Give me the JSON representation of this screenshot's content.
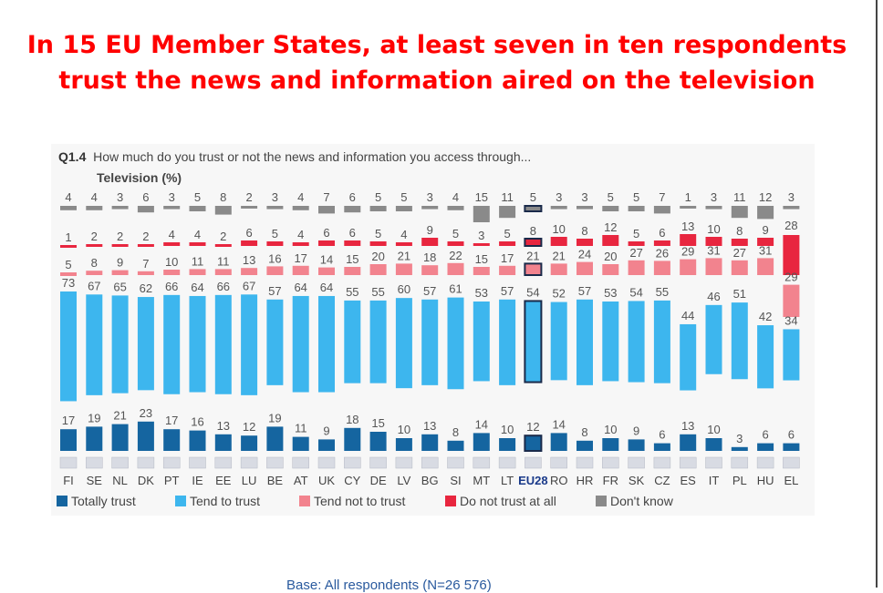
{
  "headline": "In 15 EU Member States, at least seven in ten respondents trust the news and information aired on the television",
  "question": {
    "code": "Q1.4",
    "text": "How much do you trust or not the news and information you access through..."
  },
  "chart_data": {
    "type": "bar",
    "subtitle": "Television (%)",
    "stacked": true,
    "unit": "%",
    "highlight_category": "EU28",
    "categories": [
      "FI",
      "SE",
      "NL",
      "DK",
      "PT",
      "IE",
      "EE",
      "LU",
      "BE",
      "AT",
      "UK",
      "CY",
      "DE",
      "LV",
      "BG",
      "SI",
      "MT",
      "LT",
      "EU28",
      "RO",
      "HR",
      "FR",
      "SK",
      "CZ",
      "ES",
      "IT",
      "PL",
      "HU",
      "EL"
    ],
    "series": [
      {
        "name": "Totally trust",
        "color": "#1565a0",
        "values": [
          17,
          19,
          21,
          23,
          17,
          16,
          13,
          12,
          19,
          11,
          9,
          18,
          15,
          10,
          13,
          8,
          14,
          10,
          12,
          14,
          8,
          10,
          9,
          6,
          13,
          10,
          3,
          6,
          6
        ]
      },
      {
        "name": "Tend to trust",
        "color": "#3db6ee",
        "values": [
          73,
          67,
          65,
          62,
          66,
          64,
          66,
          67,
          57,
          64,
          64,
          55,
          55,
          60,
          57,
          61,
          53,
          57,
          54,
          52,
          57,
          53,
          54,
          55,
          44,
          46,
          51,
          42,
          34
        ]
      },
      {
        "name": "Tend not to trust",
        "color": "#f2838e",
        "values": [
          5,
          8,
          9,
          7,
          10,
          11,
          11,
          13,
          16,
          17,
          14,
          15,
          20,
          21,
          18,
          22,
          15,
          17,
          21,
          21,
          24,
          20,
          27,
          26,
          29,
          31,
          27,
          31,
          29
        ]
      },
      {
        "name": "Do not trust at all",
        "color": "#e8263f",
        "values": [
          1,
          2,
          2,
          2,
          4,
          4,
          2,
          6,
          5,
          4,
          6,
          6,
          5,
          4,
          9,
          5,
          3,
          5,
          8,
          10,
          8,
          12,
          5,
          6,
          13,
          10,
          8,
          9,
          28
        ]
      },
      {
        "name": "Don't know",
        "color": "#8a8a8a",
        "values": [
          4,
          4,
          3,
          6,
          3,
          5,
          8,
          2,
          3,
          4,
          7,
          6,
          5,
          5,
          3,
          4,
          15,
          11,
          5,
          3,
          3,
          5,
          5,
          7,
          1,
          3,
          11,
          12,
          3
        ]
      }
    ]
  },
  "legend": [
    "Totally trust",
    "Tend to trust",
    "Tend not to trust",
    "Do not trust at all",
    "Don't know"
  ],
  "base_note": "Base: All respondents (N=26 576)"
}
